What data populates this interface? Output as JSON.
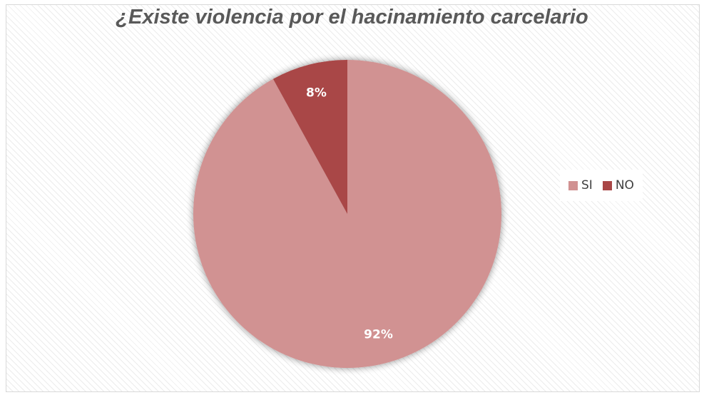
{
  "chart_data": {
    "type": "pie",
    "title": "¿Existe violencia por el hacinamiento carcelario",
    "categories": [
      "SI",
      "NO"
    ],
    "values": [
      92,
      8
    ],
    "labels": [
      "92%",
      "8%"
    ],
    "colors": [
      "#d19292",
      "#a94646"
    ],
    "legend": {
      "placement": "right",
      "items": [
        {
          "label": "SI",
          "color": "#d19292"
        },
        {
          "label": "NO",
          "color": "#a94646"
        }
      ]
    }
  }
}
